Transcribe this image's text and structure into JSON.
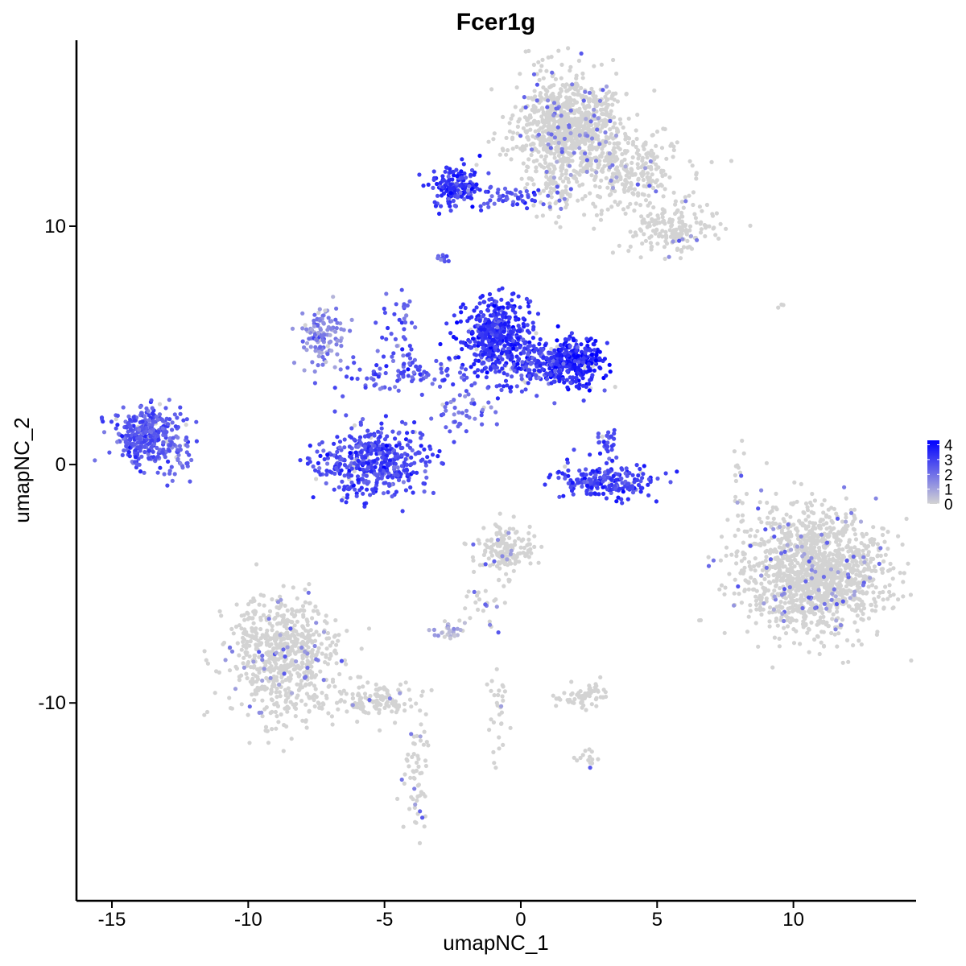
{
  "chart_data": {
    "type": "scatter",
    "title": "Fcer1g",
    "xlabel": "umapNC_1",
    "ylabel": "umapNC_2",
    "xlim": [
      -16.3,
      14.5
    ],
    "ylim": [
      -18.3,
      17.8
    ],
    "xticks": [
      -15,
      -10,
      -5,
      0,
      5,
      10
    ],
    "xtick_labels": [
      "-15",
      "-10",
      "-5",
      "0",
      "5",
      "10"
    ],
    "yticks": [
      -10,
      0,
      10
    ],
    "ytick_labels": [
      "-10",
      "0",
      "10"
    ],
    "grid": false,
    "legend": {
      "placement": "right",
      "title": "",
      "min": 0,
      "max": 4.3,
      "breaks": [
        0,
        1,
        2,
        3,
        4
      ],
      "break_labels": [
        "0",
        "1",
        "2",
        "3",
        "4"
      ],
      "low_color": "#d3d3d3",
      "high_color": "#0000ff"
    },
    "colors": {
      "low": "#d3d3d3",
      "high": "#0000ff"
    },
    "clusters": [
      {
        "name": "top-right-grey-head",
        "x": 1.8,
        "y": 14.2,
        "sx": 1.0,
        "sy": 1.05,
        "n": 900,
        "expr": 0.05
      },
      {
        "name": "top-right-grey-tail-1",
        "x": 3.8,
        "y": 12.3,
        "sx": 1.0,
        "sy": 0.9,
        "n": 280,
        "expr": 0.08
      },
      {
        "name": "top-right-grey-tail-2",
        "x": 5.6,
        "y": 9.9,
        "sx": 0.75,
        "sy": 0.55,
        "n": 180,
        "expr": 0.1
      },
      {
        "name": "top-right-grey-stem",
        "x": 1.2,
        "y": 11.6,
        "sx": 0.35,
        "sy": 0.6,
        "n": 60,
        "expr": 0.2
      },
      {
        "name": "top-purple-arm-head",
        "x": -2.4,
        "y": 11.7,
        "sx": 0.5,
        "sy": 0.45,
        "n": 160,
        "expr": 3.2
      },
      {
        "name": "top-purple-arm-tail",
        "x": -0.3,
        "y": 11.2,
        "sx": 0.9,
        "sy": 0.25,
        "n": 60,
        "expr": 2.6
      },
      {
        "name": "small-purple-dot",
        "x": -2.8,
        "y": 8.6,
        "sx": 0.15,
        "sy": 0.12,
        "n": 12,
        "expr": 2.6
      },
      {
        "name": "center-purple-left-lobe",
        "x": -0.9,
        "y": 5.4,
        "sx": 0.6,
        "sy": 0.75,
        "n": 450,
        "expr": 3.3
      },
      {
        "name": "center-purple-right-lobe",
        "x": 1.9,
        "y": 4.3,
        "sx": 0.6,
        "sy": 0.5,
        "n": 330,
        "expr": 3.6
      },
      {
        "name": "center-purple-bridge",
        "x": 0.4,
        "y": 4.2,
        "sx": 0.9,
        "sy": 0.45,
        "n": 160,
        "expr": 3.0
      },
      {
        "name": "center-spoke-left",
        "x": -4.5,
        "y": 3.8,
        "sx": 1.2,
        "sy": 0.35,
        "n": 90,
        "expr": 2.5
      },
      {
        "name": "center-spoke-up",
        "x": -4.4,
        "y": 5.7,
        "sx": 0.3,
        "sy": 1.0,
        "n": 45,
        "expr": 2.6
      },
      {
        "name": "center-spoke-down",
        "x": -2.1,
        "y": 2.4,
        "sx": 0.6,
        "sy": 0.6,
        "n": 50,
        "expr": 2.2
      },
      {
        "name": "left-arc-top",
        "x": -7.2,
        "y": 5.5,
        "sx": 0.4,
        "sy": 0.6,
        "n": 120,
        "expr": 1.6
      },
      {
        "name": "left-small-purple-cluster",
        "x": -13.7,
        "y": 1.2,
        "sx": 0.6,
        "sy": 0.55,
        "n": 360,
        "expr": 2.6
      },
      {
        "name": "left-small-purple-tail",
        "x": -12.6,
        "y": 0.6,
        "sx": 0.4,
        "sy": 0.6,
        "n": 50,
        "expr": 2.4
      },
      {
        "name": "lower-left-purple-cup",
        "x": -5.4,
        "y": 0.1,
        "sx": 1.05,
        "sy": 0.7,
        "n": 450,
        "expr": 2.9
      },
      {
        "name": "lower-right-purple-arc",
        "x": 3.2,
        "y": -0.7,
        "sx": 0.9,
        "sy": 0.35,
        "n": 220,
        "expr": 3.0
      },
      {
        "name": "lower-right-purple-top",
        "x": 3.2,
        "y": 0.8,
        "sx": 0.2,
        "sy": 0.35,
        "n": 30,
        "expr": 2.8
      },
      {
        "name": "right-big-grey-cluster",
        "x": 10.8,
        "y": -4.5,
        "sx": 1.3,
        "sy": 1.3,
        "n": 1400,
        "expr": 0.08
      },
      {
        "name": "center-grey-blob",
        "x": -0.6,
        "y": -3.6,
        "sx": 0.55,
        "sy": 0.5,
        "n": 160,
        "expr": 0.4
      },
      {
        "name": "center-grey-stalk",
        "x": -1.4,
        "y": -5.5,
        "sx": 0.35,
        "sy": 0.6,
        "n": 25,
        "expr": 0.3
      },
      {
        "name": "small-grey-left",
        "x": -2.6,
        "y": -6.9,
        "sx": 0.3,
        "sy": 0.2,
        "n": 30,
        "expr": 0.5
      },
      {
        "name": "lower-left-grey-cluster",
        "x": -8.7,
        "y": -8.0,
        "sx": 1.0,
        "sy": 1.3,
        "n": 700,
        "expr": 0.05
      },
      {
        "name": "lower-left-grey-tail",
        "x": -5.4,
        "y": -9.9,
        "sx": 0.9,
        "sy": 0.4,
        "n": 130,
        "expr": 0.1
      },
      {
        "name": "lower-grey-stream",
        "x": -3.8,
        "y": -13.1,
        "sx": 0.2,
        "sy": 1.2,
        "n": 60,
        "expr": 0.15
      },
      {
        "name": "small-grey-center",
        "x": 2.2,
        "y": -9.7,
        "sx": 0.5,
        "sy": 0.3,
        "n": 60,
        "expr": 0.1
      },
      {
        "name": "center-grey-stream",
        "x": -0.8,
        "y": -10.5,
        "sx": 0.2,
        "sy": 0.8,
        "n": 30,
        "expr": 0.2
      },
      {
        "name": "right-grey-stream",
        "x": 8.0,
        "y": -1.0,
        "sx": 0.15,
        "sy": 1.0,
        "n": 20,
        "expr": 0.3
      },
      {
        "name": "small-grey-far-right",
        "x": 9.6,
        "y": 6.7,
        "sx": 0.1,
        "sy": 0.05,
        "n": 3,
        "expr": 0.0
      },
      {
        "name": "small-grey-bottom",
        "x": 2.4,
        "y": -12.4,
        "sx": 0.3,
        "sy": 0.25,
        "n": 14,
        "expr": 0.2
      }
    ]
  }
}
